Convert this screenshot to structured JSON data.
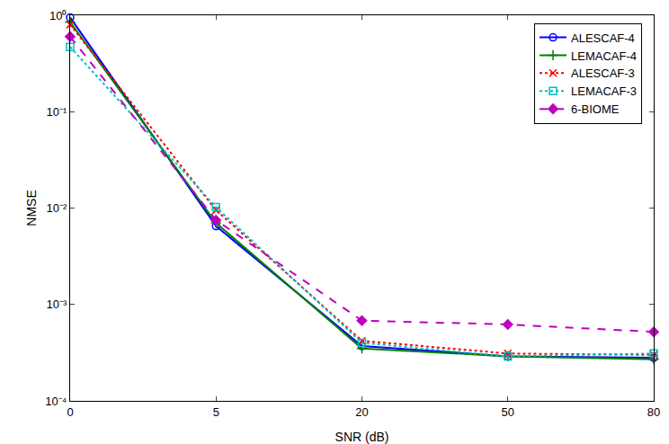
{
  "chart_data": {
    "type": "line",
    "x_label": "SNR (dB)",
    "y_label": "NMSE",
    "categories": [
      "0",
      "5",
      "20",
      "50",
      "80"
    ],
    "log": "y",
    "grid": false,
    "legend": "top-right",
    "ylim": [
      0.0001,
      1
    ],
    "yticks": [
      {
        "value": 0.0001,
        "label": "10⁻⁴"
      },
      {
        "value": 0.001,
        "label": "10⁻³"
      },
      {
        "value": 0.01,
        "label": "10⁻²"
      },
      {
        "value": 0.1,
        "label": "10⁻¹"
      },
      {
        "value": 1,
        "label": "10⁰"
      }
    ],
    "series": [
      {
        "name": "ALESCAF-4",
        "color": "#0000ff",
        "marker": "circle",
        "line_style": "solid",
        "values": [
          0.95,
          0.0065,
          0.00037,
          0.00029,
          0.00028
        ]
      },
      {
        "name": "LEMACAF-4",
        "color": "#008000",
        "marker": "plus",
        "line_style": "solid",
        "values": [
          0.85,
          0.007,
          0.00035,
          0.00029,
          0.00027
        ]
      },
      {
        "name": "ALESCAF-3",
        "color": "#ff0000",
        "marker": "x",
        "line_style": "dotted",
        "values": [
          0.8,
          0.0095,
          0.00042,
          0.00031,
          0.0003
        ]
      },
      {
        "name": "LEMACAF-3",
        "color": "#00bfbf",
        "marker": "square",
        "line_style": "dotted",
        "values": [
          0.47,
          0.0102,
          0.0004,
          0.00029,
          0.00031
        ]
      },
      {
        "name": "6-BIOME",
        "color": "#bf00bf",
        "marker": "diamond",
        "line_style": "dashed",
        "values": [
          0.6,
          0.0075,
          0.00068,
          0.00062,
          0.00052
        ]
      }
    ]
  }
}
